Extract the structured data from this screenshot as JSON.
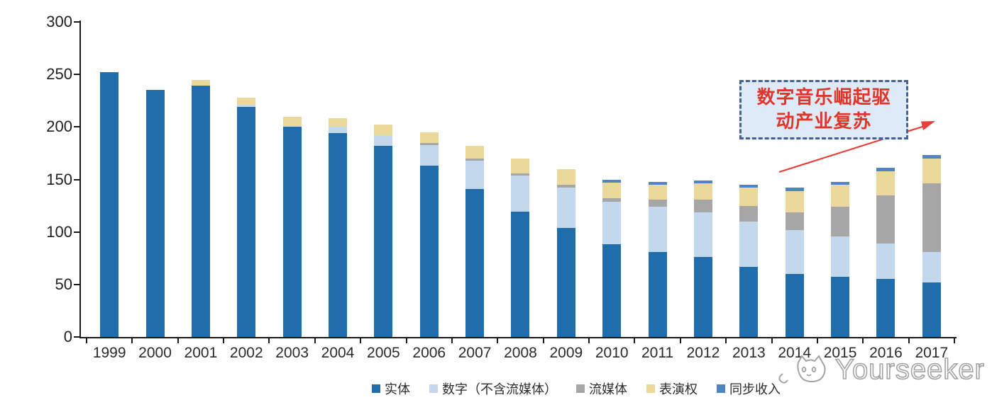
{
  "chart_data": {
    "type": "bar",
    "stacked": true,
    "title": "",
    "xlabel": "",
    "ylabel": "",
    "ylim": [
      0,
      300
    ],
    "yticks": [
      0,
      50,
      100,
      150,
      200,
      250,
      300
    ],
    "grid": false,
    "legend_position": "bottom",
    "categories": [
      "1999",
      "2000",
      "2001",
      "2002",
      "2003",
      "2004",
      "2005",
      "2006",
      "2007",
      "2008",
      "2009",
      "2010",
      "2011",
      "2012",
      "2013",
      "2014",
      "2015",
      "2016",
      "2017"
    ],
    "series": [
      {
        "name": "实体",
        "color": "#1F6DAA",
        "values": [
          252,
          235,
          239,
          219,
          200,
          194,
          182,
          163,
          141,
          119,
          104,
          88,
          81,
          76,
          67,
          60,
          57,
          55,
          52
        ]
      },
      {
        "name": "数字（不含流媒体）",
        "color": "#C3D8EC",
        "values": [
          0,
          0,
          0,
          2,
          1,
          6,
          10,
          20,
          27,
          35,
          38,
          41,
          43,
          43,
          43,
          42,
          39,
          34,
          29
        ]
      },
      {
        "name": "流媒体",
        "color": "#A6A6A6",
        "values": [
          0,
          0,
          0,
          0,
          0,
          0,
          0,
          2,
          2,
          2,
          3,
          3,
          7,
          12,
          15,
          17,
          28,
          46,
          65
        ]
      },
      {
        "name": "表演权",
        "color": "#EBD99B",
        "values": [
          0,
          0,
          6,
          7,
          9,
          8,
          10,
          10,
          12,
          14,
          15,
          15,
          14,
          15,
          17,
          20,
          21,
          23,
          24
        ]
      },
      {
        "name": "同步收入",
        "color": "#4F86C2",
        "values": [
          0,
          0,
          0,
          0,
          0,
          0,
          0,
          0,
          0,
          0,
          0,
          3,
          3,
          3,
          3,
          3,
          3,
          3,
          3
        ]
      }
    ]
  },
  "annotation": {
    "line1": "数字音乐崛起驱",
    "line2": "动产业复苏",
    "text_color": "#E0352B",
    "box_fill": "#DEEAF7",
    "border_color": "#44618F",
    "arrow_color": "#E84038"
  },
  "watermark": {
    "text": "Yourseeker",
    "color": "#A3A3A3"
  }
}
